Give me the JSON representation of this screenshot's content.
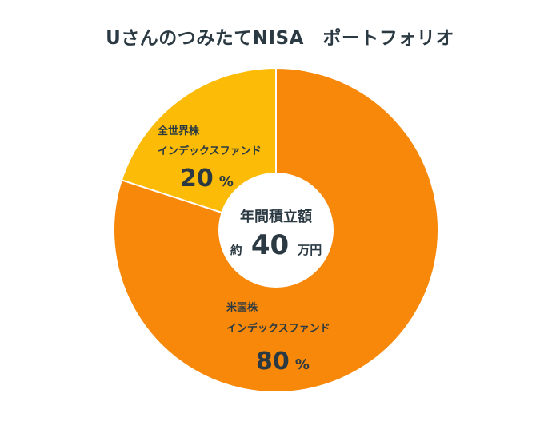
{
  "title": "UさんのつみたてNISA　ポートフォリオ",
  "center": {
    "label": "年間積立額",
    "prefix": "約",
    "amount": "40",
    "unit": "万円"
  },
  "chart_data": {
    "type": "pie",
    "title": "UさんのつみたてNISA　ポートフォリオ",
    "series": [
      {
        "name": "米国株 インデックスファンド",
        "line1": "米国株",
        "line2": "インデックスファンド",
        "value": 80,
        "color": "#F7880A"
      },
      {
        "name": "全世界株 インデックスファンド",
        "line1": "全世界株",
        "line2": "インデックスファンド",
        "value": 20,
        "color": "#FBBB06"
      }
    ],
    "value_unit": "%",
    "start_angle_deg": 0,
    "direction": "clockwise"
  }
}
